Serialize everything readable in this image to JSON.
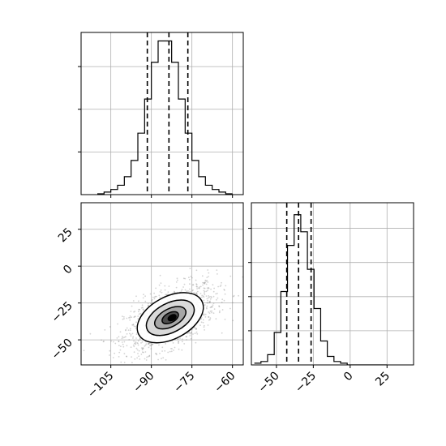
{
  "chart_data": {
    "type": "corner",
    "title": "",
    "variables": [
      "",
      ""
    ],
    "grid": true,
    "panels": [
      {
        "id": "hist-x",
        "type": "histogram",
        "xlim": [
          -116,
          -56
        ],
        "bins": {
          "start": -110,
          "width": 2.5,
          "counts": [
            1,
            3,
            6,
            11,
            21,
            40,
            72,
            112,
            155,
            180,
            180,
            155,
            112,
            72,
            40,
            21,
            11,
            6,
            3,
            1
          ]
        },
        "count_max": 190,
        "quantiles": [
          -91.5,
          -83.5,
          -76.5
        ]
      },
      {
        "id": "scatter-xy",
        "type": "scatter-density",
        "xlim": [
          -116,
          -56
        ],
        "ylim": [
          -67,
          43
        ],
        "xticks": [
          "−105",
          "−90",
          "−75",
          "−60"
        ],
        "xtick_values": [
          -105,
          -90,
          -75,
          -60
        ],
        "yticks": [
          "−50",
          "−25",
          "0",
          "25"
        ],
        "ytick_values": [
          -50,
          -25,
          0,
          25
        ],
        "center": [
          -83,
          -35
        ],
        "contour_levels": 4,
        "points_color": "#808080",
        "contour_fill_colors": [
          "#ffffff",
          "#d9d9d9",
          "#a6a6a6",
          "#4d4d4d",
          "#000000"
        ]
      },
      {
        "id": "hist-y",
        "type": "histogram",
        "xlim": [
          -67,
          43
        ],
        "xticks": [
          "−50",
          "−25",
          "0",
          "25"
        ],
        "xtick_values": [
          -50,
          -25,
          0,
          25
        ],
        "bins": {
          "start": -65,
          "width": 4.5,
          "counts": [
            1,
            2,
            6,
            19,
            43,
            70,
            88,
            78,
            56,
            33,
            14,
            5,
            2,
            1,
            0,
            0,
            0,
            0,
            0,
            0
          ]
        },
        "count_max": 95,
        "quantiles": [
          -43,
          -35,
          -26.5
        ]
      }
    ]
  }
}
